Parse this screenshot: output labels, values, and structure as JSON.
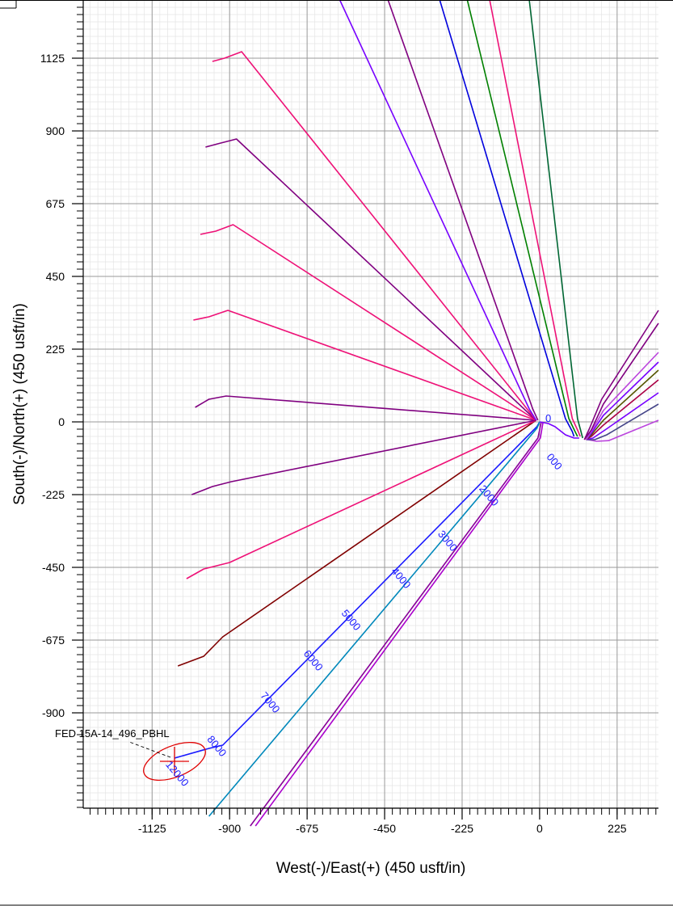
{
  "chart_data": {
    "type": "line",
    "xlabel": "West(-)/East(+) (450 usft/in)",
    "ylabel": "South(-)/North(+) (450 usft/in)",
    "xlim": [
      -1325,
      345
    ],
    "ylim": [
      -1195,
      1305
    ],
    "x_ticks": [
      -1125,
      -900,
      -675,
      -450,
      -225,
      0,
      225
    ],
    "y_ticks": [
      1125,
      900,
      675,
      450,
      225,
      0,
      -225,
      -450,
      -675,
      -900
    ],
    "grid": true,
    "target": {
      "name": "FED 15A-14_496_PBHL",
      "x": -1060,
      "y": -1050,
      "ellipse_rx": 95,
      "ellipse_ry": 48,
      "color": "#e00000"
    },
    "md_labels": [
      {
        "text": "0",
        "x": 25,
        "y": 0
      },
      {
        "text": "000",
        "x": 35,
        "y": -130
      },
      {
        "text": "2000",
        "x": -155,
        "y": -235
      },
      {
        "text": "3000",
        "x": -275,
        "y": -375
      },
      {
        "text": "4000",
        "x": -410,
        "y": -490
      },
      {
        "text": "5000",
        "x": -555,
        "y": -620
      },
      {
        "text": "6000",
        "x": -665,
        "y": -745
      },
      {
        "text": "7000",
        "x": -790,
        "y": -875
      },
      {
        "text": "8000",
        "x": -945,
        "y": -1010
      },
      {
        "text": "12000",
        "x": -1060,
        "y": -1095
      }
    ],
    "series": [
      {
        "color": "#1a1aff",
        "x": [
          0,
          -8,
          -50,
          -920,
          -960,
          -1060
        ],
        "y": [
          0,
          -15,
          -60,
          -1000,
          -1010,
          -1040
        ]
      },
      {
        "color": "#0088bb",
        "x": [
          0,
          -8,
          -960
        ],
        "y": [
          0,
          -20,
          -1220
        ]
      },
      {
        "color": "#880099",
        "x": [
          5,
          -5,
          -840
        ],
        "y": [
          0,
          -50,
          -1250
        ]
      },
      {
        "color": "#aa00cc",
        "x": [
          10,
          2,
          -825
        ],
        "y": [
          0,
          -50,
          -1250
        ]
      },
      {
        "color": "#800000",
        "x": [
          -10,
          -920,
          -975,
          -1050
        ],
        "y": [
          5,
          -665,
          -725,
          -755
        ]
      },
      {
        "color": "#ee1177",
        "x": [
          -10,
          -900,
          -975,
          -1025
        ],
        "y": [
          5,
          -435,
          -455,
          -485
        ]
      },
      {
        "color": "#800080",
        "x": [
          -10,
          -895,
          -950,
          -1010
        ],
        "y": [
          5,
          -185,
          -200,
          -225
        ]
      },
      {
        "color": "#800080",
        "x": [
          -10,
          -910,
          -960,
          -1000
        ],
        "y": [
          5,
          80,
          70,
          45
        ]
      },
      {
        "color": "#ee1177",
        "x": [
          -10,
          -905,
          -960,
          -1005
        ],
        "y": [
          5,
          345,
          325,
          315
        ]
      },
      {
        "color": "#ee1177",
        "x": [
          -10,
          -890,
          -940,
          -985
        ],
        "y": [
          5,
          610,
          590,
          580
        ]
      },
      {
        "color": "#800080",
        "x": [
          -10,
          -880,
          -935,
          -970
        ],
        "y": [
          5,
          875,
          860,
          850
        ]
      },
      {
        "color": "#ee1177",
        "x": [
          -10,
          -865,
          -915,
          -950
        ],
        "y": [
          5,
          1145,
          1125,
          1115
        ]
      },
      {
        "color": "#7700ff",
        "x": [
          -10,
          -30,
          -580
        ],
        "y": [
          5,
          40,
          1305
        ]
      },
      {
        "color": "#800080",
        "x": [
          -5,
          -20,
          -440
        ],
        "y": [
          5,
          40,
          1305
        ]
      },
      {
        "color": "#0000dd",
        "x": [
          100,
          95,
          75,
          -290
        ],
        "y": [
          -45,
          -30,
          10,
          1305
        ]
      },
      {
        "color": "#008000",
        "x": [
          110,
          103,
          85,
          -210
        ],
        "y": [
          -45,
          -30,
          10,
          1305
        ]
      },
      {
        "color": "#ee1177",
        "x": [
          118,
          112,
          95,
          -145
        ],
        "y": [
          -45,
          -30,
          10,
          1305
        ]
      },
      {
        "color": "#006633",
        "x": [
          125,
          120,
          110,
          -30
        ],
        "y": [
          -50,
          -30,
          10,
          1305
        ]
      },
      {
        "color": "#7700ff",
        "x": [
          0,
          25,
          45,
          75,
          100,
          115
        ],
        "y": [
          0,
          -5,
          -15,
          -40,
          -50,
          -50
        ]
      },
      {
        "color": "#bb44dd",
        "x": [
          140,
          165,
          200,
          345
        ],
        "y": [
          -55,
          -60,
          -58,
          5
        ]
      },
      {
        "color": "#444488",
        "x": [
          135,
          160,
          195,
          345
        ],
        "y": [
          -55,
          -55,
          -40,
          55
        ]
      },
      {
        "color": "#7700ff",
        "x": [
          135,
          155,
          190,
          345
        ],
        "y": [
          -55,
          -50,
          -25,
          90
        ]
      },
      {
        "color": "#aa0044",
        "x": [
          135,
          150,
          185,
          345
        ],
        "y": [
          -55,
          -45,
          -10,
          130
        ]
      },
      {
        "color": "#555500",
        "x": [
          135,
          150,
          185,
          345
        ],
        "y": [
          -55,
          -40,
          5,
          160
        ]
      },
      {
        "color": "#7700ff",
        "x": [
          135,
          150,
          185,
          345
        ],
        "y": [
          -55,
          -35,
          20,
          185
        ]
      },
      {
        "color": "#bb44dd",
        "x": [
          135,
          150,
          185,
          345
        ],
        "y": [
          -55,
          -30,
          35,
          215
        ]
      },
      {
        "color": "#800080",
        "x": [
          130,
          150,
          185,
          345
        ],
        "y": [
          -55,
          -25,
          55,
          305
        ]
      },
      {
        "color": "#800080",
        "x": [
          130,
          145,
          180,
          345
        ],
        "y": [
          -55,
          -20,
          70,
          345
        ]
      }
    ]
  }
}
